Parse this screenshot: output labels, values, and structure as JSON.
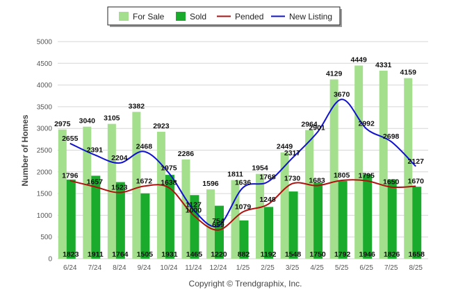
{
  "chart_data": {
    "type": "bar",
    "ylabel": "Number of Homes",
    "ylim": [
      0,
      5000
    ],
    "yticks": [
      0,
      500,
      1000,
      1500,
      2000,
      2500,
      3000,
      3500,
      4000,
      4500,
      5000
    ],
    "grid": true,
    "legend_position": "top-center",
    "categories": [
      "6/24",
      "7/24",
      "8/24",
      "9/24",
      "10/24",
      "11/24",
      "12/24",
      "1/25",
      "2/25",
      "3/25",
      "4/25",
      "5/25",
      "6/25",
      "7/25",
      "8/25"
    ],
    "series": [
      {
        "name": "For Sale",
        "kind": "bar",
        "color": "#a3df8c",
        "values": [
          2975,
          3040,
          3105,
          3382,
          2923,
          2286,
          1596,
          1811,
          1954,
          2449,
          2964,
          4129,
          4449,
          4331,
          4159
        ]
      },
      {
        "name": "Sold",
        "kind": "bar",
        "color": "#1aab2c",
        "values": [
          1823,
          1911,
          1764,
          1505,
          1931,
          1465,
          1220,
          882,
          1192,
          1548,
          1750,
          1792,
          1946,
          1826,
          1658
        ]
      },
      {
        "name": "Pended",
        "kind": "line",
        "color": "#b01010",
        "values": [
          1796,
          1657,
          1523,
          1672,
          1638,
          1000,
          659,
          1079,
          1248,
          1730,
          1683,
          1805,
          1795,
          1650,
          1670
        ]
      },
      {
        "name": "New Listing",
        "kind": "line",
        "color": "#1010d0",
        "values": [
          2655,
          2391,
          2204,
          2468,
          1975,
          1127,
          754,
          1636,
          1768,
          2317,
          2901,
          3670,
          2992,
          2698,
          2127
        ]
      }
    ],
    "credit": "Copyright © Trendgraphix, Inc."
  }
}
